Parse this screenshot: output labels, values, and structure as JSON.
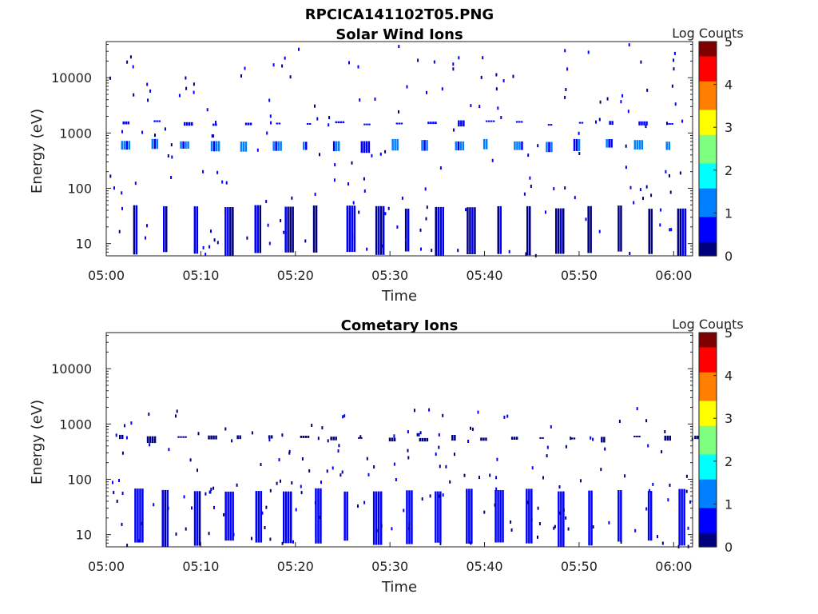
{
  "figure_title": "RPCICA141102T05.PNG",
  "chart_data": [
    {
      "type": "heatmap",
      "title": "Solar Wind Ions",
      "xlabel": "Time",
      "ylabel": "Energy (eV)",
      "y_scale": "log",
      "ylim": [
        6,
        45000
      ],
      "xlim": [
        "05:00",
        "06:02"
      ],
      "x_ticks": [
        "05:00",
        "05:10",
        "05:20",
        "05:30",
        "05:40",
        "05:50",
        "06:00"
      ],
      "y_ticks": [
        "10",
        "100",
        "1000",
        "10000"
      ],
      "colorbar_label": "Log Counts",
      "colorbar_ticks": [
        "0",
        "1",
        "2",
        "3",
        "4",
        "5"
      ],
      "colorbar_range": [
        0,
        5
      ],
      "colormap": [
        "#00007f",
        "#0000ff",
        "#007fff",
        "#00ffff",
        "#7fff7f",
        "#ffff00",
        "#ff7f00",
        "#ff0000",
        "#7f0000"
      ],
      "features": [
        {
          "desc": "periodic bands",
          "e_min": 420,
          "e_max": 800,
          "level": 1.0,
          "period_min": 3.2,
          "start_min": 1.5
        },
        {
          "desc": "secondary band",
          "e_min": 1300,
          "e_max": 1700,
          "level": 0.6,
          "period_min": 3.2,
          "start_min": 1.8
        },
        {
          "desc": "low energy streaks",
          "e_min": 6,
          "e_max": 50,
          "level": 0.3,
          "period_min": 3.2,
          "start_min": 2.8
        },
        {
          "desc": "scattered noise",
          "e_min": 6,
          "e_max": 40000,
          "level": 0.3,
          "density": "sparse"
        }
      ]
    },
    {
      "type": "heatmap",
      "title": "Cometary Ions",
      "xlabel": "Time",
      "ylabel": "Energy (eV)",
      "y_scale": "log",
      "ylim": [
        6,
        45000
      ],
      "xlim": [
        "05:00",
        "06:02"
      ],
      "x_ticks": [
        "05:00",
        "05:10",
        "05:20",
        "05:30",
        "05:40",
        "05:50",
        "06:00"
      ],
      "y_ticks": [
        "10",
        "100",
        "1000",
        "10000"
      ],
      "colorbar_label": "Log Counts",
      "colorbar_ticks": [
        "0",
        "1",
        "2",
        "3",
        "4",
        "5"
      ],
      "colorbar_range": [
        0,
        5
      ],
      "colormap": [
        "#00007f",
        "#0000ff",
        "#007fff",
        "#00ffff",
        "#7fff7f",
        "#ffff00",
        "#ff7f00",
        "#ff0000",
        "#7f0000"
      ],
      "features": [
        {
          "desc": "low energy streaks",
          "e_min": 6,
          "e_max": 70,
          "level": 0.5,
          "period_min": 3.2,
          "start_min": 2.8
        },
        {
          "desc": "sparse 500 eV dots",
          "e_min": 450,
          "e_max": 650,
          "level": 0.2,
          "period_min": 3.2,
          "start_min": 1.2
        },
        {
          "desc": "scattered noise",
          "e_min": 6,
          "e_max": 2000,
          "level": 0.2,
          "density": "sparse"
        }
      ]
    }
  ]
}
